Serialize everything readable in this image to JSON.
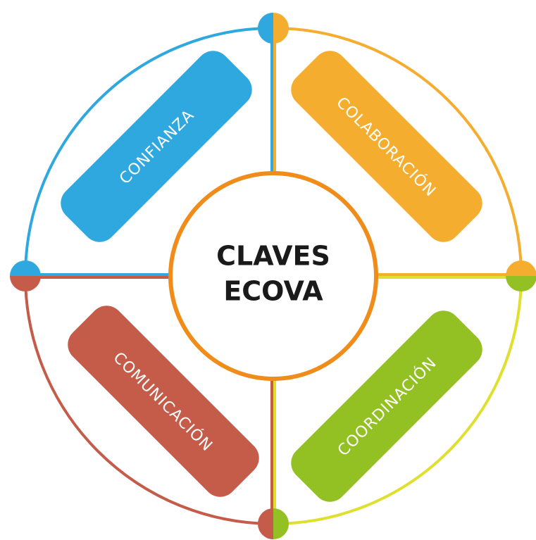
{
  "center": {
    "lines": [
      "CLAVES",
      "ECOVA"
    ]
  },
  "keys": [
    "CONFIANZA",
    "COLABORACIÓN",
    "COMUNICACIÓN",
    "COORDINACIÓN"
  ]
}
